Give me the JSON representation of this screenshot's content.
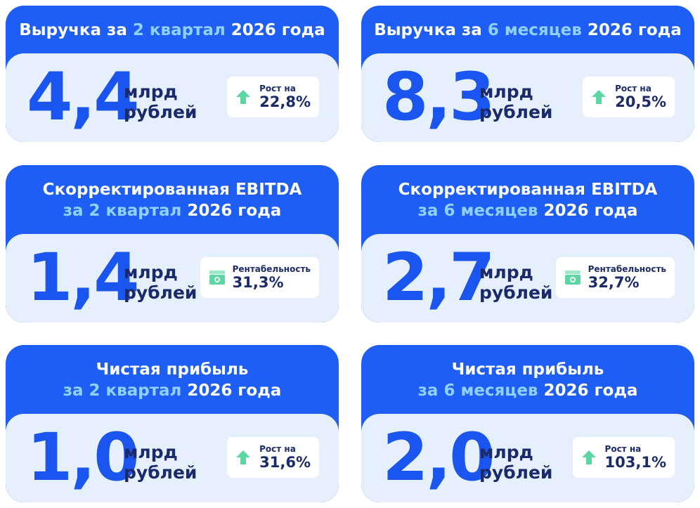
{
  "cards": [
    {
      "title_lines": [
        [
          {
            "text": "Выручка за ",
            "accent": false
          },
          {
            "text": "2 квартал",
            "accent": true
          },
          {
            "text": " 2026 года",
            "accent": false
          }
        ]
      ],
      "value": "4,4",
      "unit": [
        "млрд",
        "рублей"
      ],
      "badge_icon": "arrow",
      "badge_label": "Рост на",
      "badge_value": "22,8%"
    },
    {
      "title_lines": [
        [
          {
            "text": "Выручка за ",
            "accent": false
          },
          {
            "text": "6 месяцев",
            "accent": true
          },
          {
            "text": " 2026 года",
            "accent": false
          }
        ]
      ],
      "value": "8,3",
      "unit": [
        "млрд",
        "рублей"
      ],
      "badge_icon": "arrow",
      "badge_label": "Рост на",
      "badge_value": "20,5%"
    },
    {
      "title_lines": [
        [
          {
            "text": "Скорректированная EBITDA",
            "accent": false
          }
        ],
        [
          {
            "text": "за 2 квартал",
            "accent": true
          },
          {
            "text": " 2026 года",
            "accent": false
          }
        ]
      ],
      "value": "1,4",
      "unit": [
        "млрд",
        "рублей"
      ],
      "badge_icon": "money",
      "badge_label": "Рентабельность",
      "badge_value": "31,3%"
    },
    {
      "title_lines": [
        [
          {
            "text": "Скорректированная EBITDA",
            "accent": false
          }
        ],
        [
          {
            "text": "за 6 месяцев",
            "accent": true
          },
          {
            "text": " 2026 года",
            "accent": false
          }
        ]
      ],
      "value": "2,7",
      "unit": [
        "млрд",
        "рублей"
      ],
      "badge_icon": "money",
      "badge_label": "Рентабельность",
      "badge_value": "32,7%"
    },
    {
      "title_lines": [
        [
          {
            "text": "Чистая прибыль",
            "accent": false
          }
        ],
        [
          {
            "text": "за 2 квартал",
            "accent": true
          },
          {
            "text": " 2026 года",
            "accent": false
          }
        ]
      ],
      "value": "1,0",
      "unit": [
        "млрд",
        "рублей"
      ],
      "badge_icon": "arrow",
      "badge_label": "Рост на",
      "badge_value": "31,6%"
    },
    {
      "title_lines": [
        [
          {
            "text": "Чистая прибыль",
            "accent": false
          }
        ],
        [
          {
            "text": "за 6 месяцев",
            "accent": true
          },
          {
            "text": " 2026 года",
            "accent": false
          }
        ]
      ],
      "value": "2,0",
      "unit": [
        "млрд",
        "рублей"
      ],
      "badge_icon": "arrow",
      "badge_label": "Рост на",
      "badge_value": "103,1%"
    }
  ]
}
